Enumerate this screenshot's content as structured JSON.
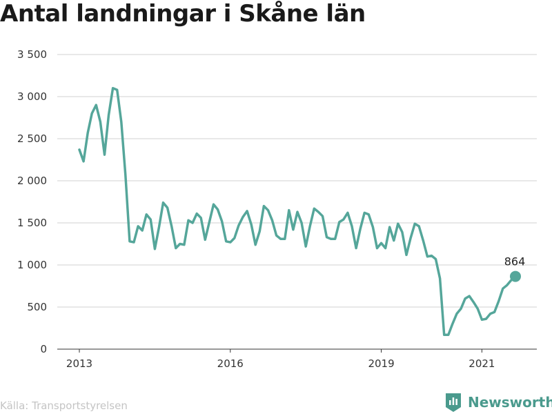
{
  "title": "Antal landningar i Skåne län",
  "source": "Källa: Transportstyrelsen",
  "brand": {
    "name": "Newsworthy",
    "icon": "bar-chart-badge-icon"
  },
  "colors": {
    "line": "#55a69a",
    "grid": "#d0d0d0",
    "axis": "#333333",
    "brand": "#4a9a8d"
  },
  "chart_data": {
    "type": "line",
    "title": "Antal landningar i Skåne län",
    "xlabel": "",
    "ylabel": "",
    "ylim": [
      0,
      3500
    ],
    "yticks": [
      0,
      500,
      1000,
      1500,
      2000,
      2500,
      3000,
      3500
    ],
    "ytick_labels": [
      "0",
      "500",
      "1 000",
      "1 500",
      "2 000",
      "2 500",
      "3 000",
      "3 500"
    ],
    "xticks": [
      "2013",
      "2016",
      "2019",
      "2021"
    ],
    "grid": true,
    "series": [
      {
        "x": [
          "2013-01",
          "2013-02",
          "2013-03",
          "2013-04",
          "2013-05",
          "2013-06",
          "2013-07",
          "2013-08",
          "2013-09",
          "2013-10",
          "2013-11",
          "2013-12",
          "2014-01",
          "2014-02",
          "2014-03",
          "2014-04",
          "2014-05",
          "2014-06",
          "2014-07",
          "2014-08",
          "2014-09",
          "2014-10",
          "2014-11",
          "2014-12",
          "2015-01",
          "2015-02",
          "2015-03",
          "2015-04",
          "2015-05",
          "2015-06",
          "2015-07",
          "2015-08",
          "2015-09",
          "2015-10",
          "2015-11",
          "2015-12",
          "2016-01",
          "2016-02",
          "2016-03",
          "2016-04",
          "2016-05",
          "2016-06",
          "2016-07",
          "2016-08",
          "2016-09",
          "2016-10",
          "2016-11",
          "2016-12",
          "2017-01",
          "2017-02",
          "2017-03",
          "2017-04",
          "2017-05",
          "2017-06",
          "2017-07",
          "2017-08",
          "2017-09",
          "2017-10",
          "2017-11",
          "2017-12",
          "2018-01",
          "2018-02",
          "2018-03",
          "2018-04",
          "2018-05",
          "2018-06",
          "2018-07",
          "2018-08",
          "2018-09",
          "2018-10",
          "2018-11",
          "2018-12",
          "2019-01",
          "2019-02",
          "2019-03",
          "2019-04",
          "2019-05",
          "2019-06",
          "2019-07",
          "2019-08",
          "2019-09",
          "2019-10",
          "2019-11",
          "2019-12",
          "2020-01",
          "2020-02",
          "2020-03",
          "2020-04",
          "2020-05",
          "2020-06",
          "2020-07",
          "2020-08",
          "2020-09",
          "2020-10",
          "2020-11",
          "2020-12",
          "2021-01",
          "2021-02",
          "2021-03",
          "2021-04",
          "2021-05",
          "2021-06",
          "2021-07",
          "2021-08",
          "2021-09"
        ],
        "values": [
          2370,
          2230,
          2570,
          2800,
          2900,
          2700,
          2310,
          2780,
          3100,
          3080,
          2700,
          2070,
          1280,
          1270,
          1460,
          1410,
          1600,
          1540,
          1190,
          1450,
          1740,
          1680,
          1460,
          1200,
          1250,
          1240,
          1530,
          1500,
          1610,
          1560,
          1300,
          1510,
          1720,
          1660,
          1520,
          1280,
          1270,
          1320,
          1470,
          1570,
          1640,
          1480,
          1240,
          1400,
          1700,
          1650,
          1530,
          1350,
          1310,
          1310,
          1650,
          1420,
          1630,
          1500,
          1220,
          1460,
          1670,
          1630,
          1580,
          1330,
          1310,
          1310,
          1510,
          1540,
          1620,
          1460,
          1200,
          1430,
          1620,
          1600,
          1450,
          1200,
          1260,
          1200,
          1450,
          1290,
          1490,
          1390,
          1120,
          1320,
          1490,
          1460,
          1290,
          1100,
          1110,
          1070,
          840,
          170,
          170,
          300,
          420,
          480,
          600,
          630,
          560,
          480,
          350,
          360,
          420,
          440,
          570,
          720,
          760,
          820,
          864
        ]
      }
    ],
    "annotations": [
      {
        "x": "2021-09",
        "value": 864,
        "label": "864"
      }
    ]
  }
}
